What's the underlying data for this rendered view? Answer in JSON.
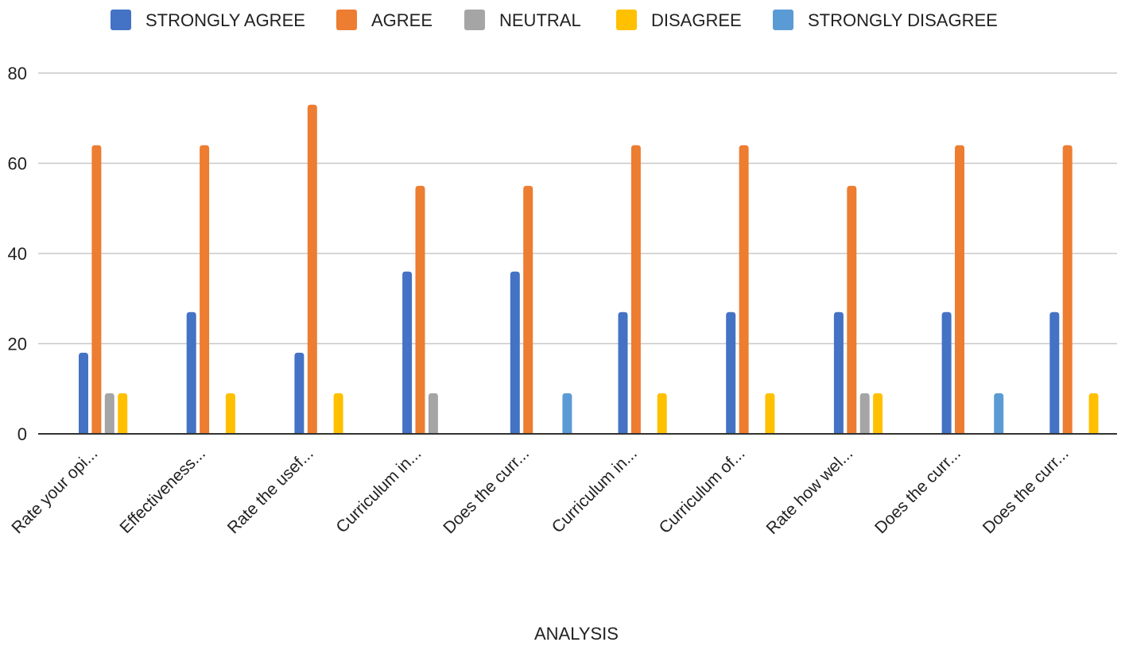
{
  "chart_data": {
    "type": "bar",
    "title": "",
    "xlabel": "ANALYSIS",
    "ylabel": "",
    "ylim": [
      0,
      80
    ],
    "yticks": [
      0,
      20,
      40,
      60,
      80
    ],
    "grid": true,
    "legend_position": "top",
    "categories": [
      "Rate your opi...",
      "Effectiveness...",
      "Rate the usef...",
      "Curriculum in...",
      "Does the curr...",
      "Curriculum in...",
      "Curriculum of...",
      "Rate how wel...",
      "Does the curr...",
      "Does the curr..."
    ],
    "series": [
      {
        "name": "STRONGLY AGREE",
        "color": "#4472C4",
        "values": [
          18,
          27,
          18,
          36,
          36,
          27,
          27,
          27,
          27,
          27
        ]
      },
      {
        "name": "AGREE",
        "color": "#ED7D31",
        "values": [
          64,
          64,
          73,
          55,
          55,
          64,
          64,
          55,
          64,
          64
        ]
      },
      {
        "name": "NEUTRAL",
        "color": "#A5A5A5",
        "values": [
          9,
          0,
          0,
          9,
          0,
          0,
          0,
          9,
          0,
          0
        ]
      },
      {
        "name": "DISAGREE",
        "color": "#FFC000",
        "values": [
          9,
          9,
          9,
          0,
          0,
          9,
          9,
          9,
          0,
          9
        ]
      },
      {
        "name": "STRONGLY DISAGREE",
        "color": "#5B9BD5",
        "values": [
          0,
          0,
          0,
          0,
          9,
          0,
          0,
          0,
          9,
          0
        ]
      }
    ]
  }
}
